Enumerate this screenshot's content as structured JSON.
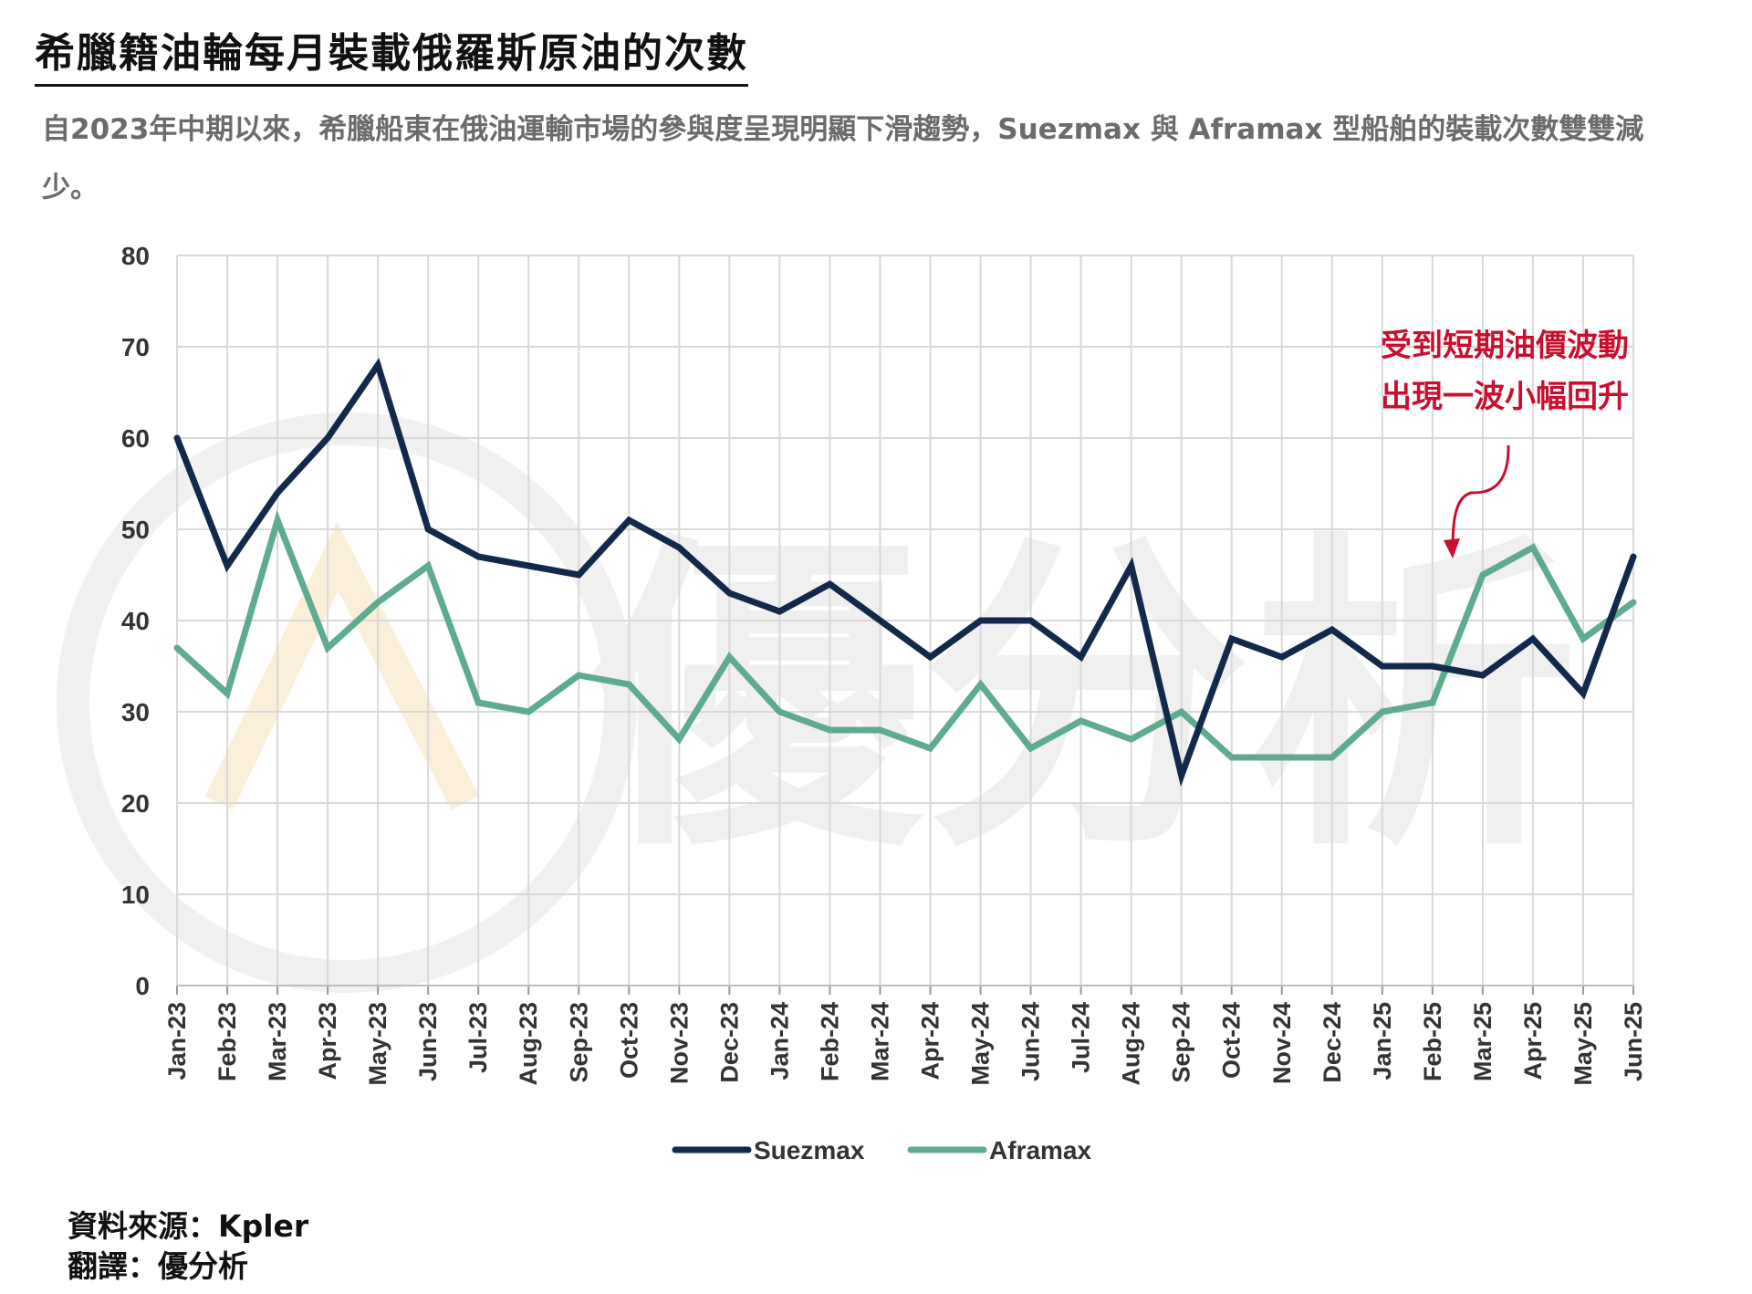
{
  "header": {
    "title": "希臘籍油輪每月裝載俄羅斯原油的次數",
    "subtitle": "自2023年中期以來，希臘船東在俄油運輸市場的參與度呈現明顯下滑趨勢，Suezmax 與 Aframax 型船舶的裝載次數雙雙減少。"
  },
  "footer": {
    "source": "資料來源：Kpler",
    "translation": "翻譯：優分析"
  },
  "watermark": {
    "text": "優分析"
  },
  "colors": {
    "suezmax": "#13294b",
    "aframax": "#5fab8f",
    "annotation": "#c8102e",
    "grid": "#d9d9d9"
  },
  "chart_data": {
    "type": "line",
    "categories": [
      "Jan-23",
      "Feb-23",
      "Mar-23",
      "Apr-23",
      "May-23",
      "Jun-23",
      "Jul-23",
      "Aug-23",
      "Sep-23",
      "Oct-23",
      "Nov-23",
      "Dec-23",
      "Jan-24",
      "Feb-24",
      "Mar-24",
      "Apr-24",
      "May-24",
      "Jun-24",
      "Jul-24",
      "Aug-24",
      "Sep-24",
      "Oct-24",
      "Nov-24",
      "Dec-24",
      "Jan-25",
      "Feb-25",
      "Mar-25",
      "Apr-25",
      "May-25",
      "Jun-25"
    ],
    "series": [
      {
        "name": "Suezmax",
        "values": [
          60,
          46,
          54,
          60,
          68,
          50,
          47,
          46,
          45,
          51,
          48,
          43,
          41,
          44,
          40,
          36,
          40,
          40,
          36,
          46,
          23,
          38,
          36,
          39,
          35,
          35,
          34,
          38,
          32,
          47
        ]
      },
      {
        "name": "Aframax",
        "values": [
          37,
          32,
          51,
          37,
          42,
          46,
          31,
          30,
          34,
          33,
          27,
          36,
          30,
          28,
          28,
          26,
          33,
          26,
          29,
          27,
          30,
          25,
          25,
          25,
          30,
          31,
          45,
          48,
          38,
          42
        ]
      }
    ],
    "ylim": [
      0,
      80
    ],
    "yticks": [
      0,
      10,
      20,
      30,
      40,
      50,
      60,
      70,
      80
    ],
    "grid": true,
    "legend": "bottom",
    "annotation": {
      "lines": [
        "受到短期油價波動",
        "出現一波小幅回升"
      ],
      "target_category": "Mar-25"
    }
  }
}
